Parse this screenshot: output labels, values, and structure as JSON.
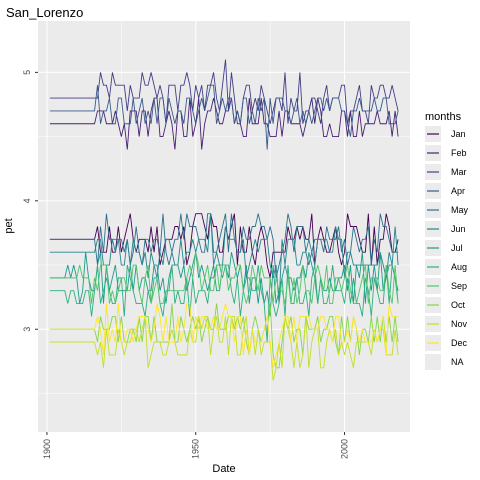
{
  "chart_data": {
    "type": "line",
    "title": "San_Lorenzo",
    "xlabel": "Date",
    "ylabel": "pet",
    "xlim": [
      1897,
      2022
    ],
    "ylim": [
      2.2,
      5.4
    ],
    "x_ticks": [
      1900,
      1950,
      2000
    ],
    "x_tick_labels": [
      "1900",
      "1950",
      "2000"
    ],
    "y_ticks": [
      3,
      4,
      5
    ],
    "y_tick_labels": [
      "3",
      "4",
      "5"
    ],
    "grid": true,
    "panel_background": "#ebebeb",
    "legend": {
      "title": "months",
      "placement": "right",
      "entries": [
        "Jan",
        "Feb",
        "Mar",
        "Apr",
        "May",
        "Jun",
        "Jul",
        "Aug",
        "Sep",
        "Oct",
        "Nov",
        "Dec",
        "NA"
      ],
      "colors": [
        "#440154",
        "#482173",
        "#433E85",
        "#38598C",
        "#2D708E",
        "#25858E",
        "#1E9B8A",
        "#2BB07F",
        "#51C56A",
        "#85D54A",
        "#C2DF23",
        "#FDE725",
        "#ebebeb"
      ]
    },
    "year_start": 1901,
    "year_end": 2018,
    "series": [
      {
        "name": "Jan",
        "color": "#440154",
        "base": 3.7,
        "flat_until": 1916,
        "amp": 0.18,
        "seed": 11
      },
      {
        "name": "Feb",
        "color": "#482173",
        "base": 4.6,
        "flat_until": 1916,
        "amp": 0.17,
        "seed": 23
      },
      {
        "name": "Mar",
        "color": "#433E85",
        "base": 4.8,
        "flat_until": 1916,
        "amp": 0.18,
        "seed": 37
      },
      {
        "name": "Apr",
        "color": "#38598C",
        "base": 4.7,
        "flat_until": 1916,
        "amp": 0.17,
        "seed": 41
      },
      {
        "name": "May",
        "color": "#2D708E",
        "base": 3.7,
        "flat_until": 1916,
        "amp": 0.17,
        "seed": 53
      },
      {
        "name": "Jun",
        "color": "#25858E",
        "base": 3.6,
        "flat_until": 1916,
        "amp": 0.17,
        "seed": 67
      },
      {
        "name": "Jul",
        "color": "#1E9B8A",
        "base": 3.4,
        "flat_until": 1906,
        "amp": 0.18,
        "seed": 79
      },
      {
        "name": "Aug",
        "color": "#2BB07F",
        "base": 3.3,
        "flat_until": 1906,
        "amp": 0.18,
        "seed": 83
      },
      {
        "name": "Sep",
        "color": "#51C56A",
        "base": 3.35,
        "flat_until": 1910,
        "amp": 0.18,
        "seed": 97
      },
      {
        "name": "Oct",
        "color": "#85D54A",
        "base": 3.0,
        "flat_until": 1916,
        "amp": 0.17,
        "seed": 101
      },
      {
        "name": "Nov",
        "color": "#C2DF23",
        "base": 2.9,
        "flat_until": 1916,
        "amp": 0.17,
        "seed": 113
      },
      {
        "name": "Dec",
        "color": "#FDE725",
        "base": 3.0,
        "flat_until": 1916,
        "amp": 0.17,
        "seed": 127
      }
    ]
  }
}
